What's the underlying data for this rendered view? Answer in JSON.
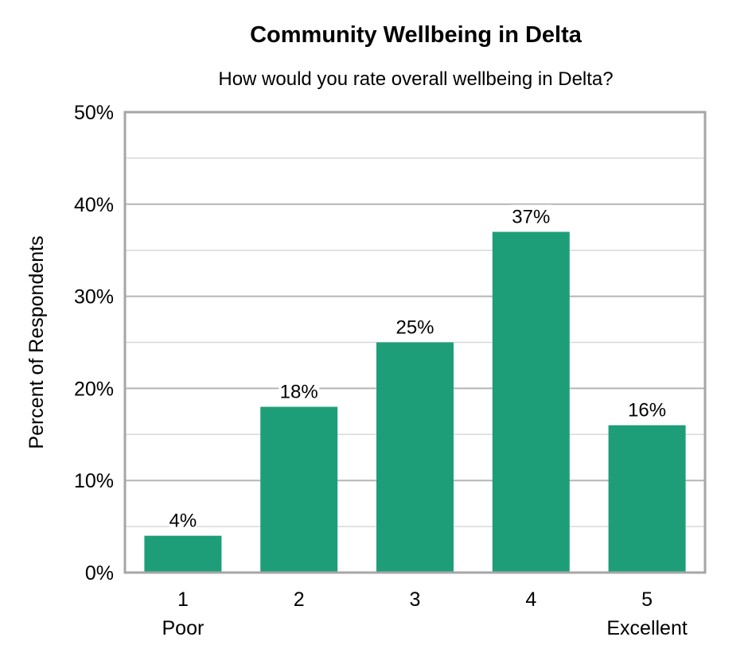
{
  "chart_data": {
    "type": "bar",
    "title": "Community Wellbeing in Delta",
    "subtitle": "How would you rate overall wellbeing in Delta?",
    "xlabel": "",
    "ylabel": "Percent of Respondents",
    "categories": [
      "1",
      "2",
      "3",
      "4",
      "5"
    ],
    "category_sublabels": [
      "Poor",
      "",
      "",
      "",
      "Excellent"
    ],
    "values": [
      4,
      18,
      25,
      37,
      16
    ],
    "data_labels": [
      "4%",
      "18%",
      "25%",
      "37%",
      "16%"
    ],
    "ylim": [
      0,
      50
    ],
    "yticks": [
      0,
      10,
      20,
      30,
      40,
      50
    ],
    "ytick_labels": [
      "0%",
      "10%",
      "20%",
      "30%",
      "40%",
      "50%"
    ],
    "grid": true,
    "bar_color": "#1E9E78"
  }
}
